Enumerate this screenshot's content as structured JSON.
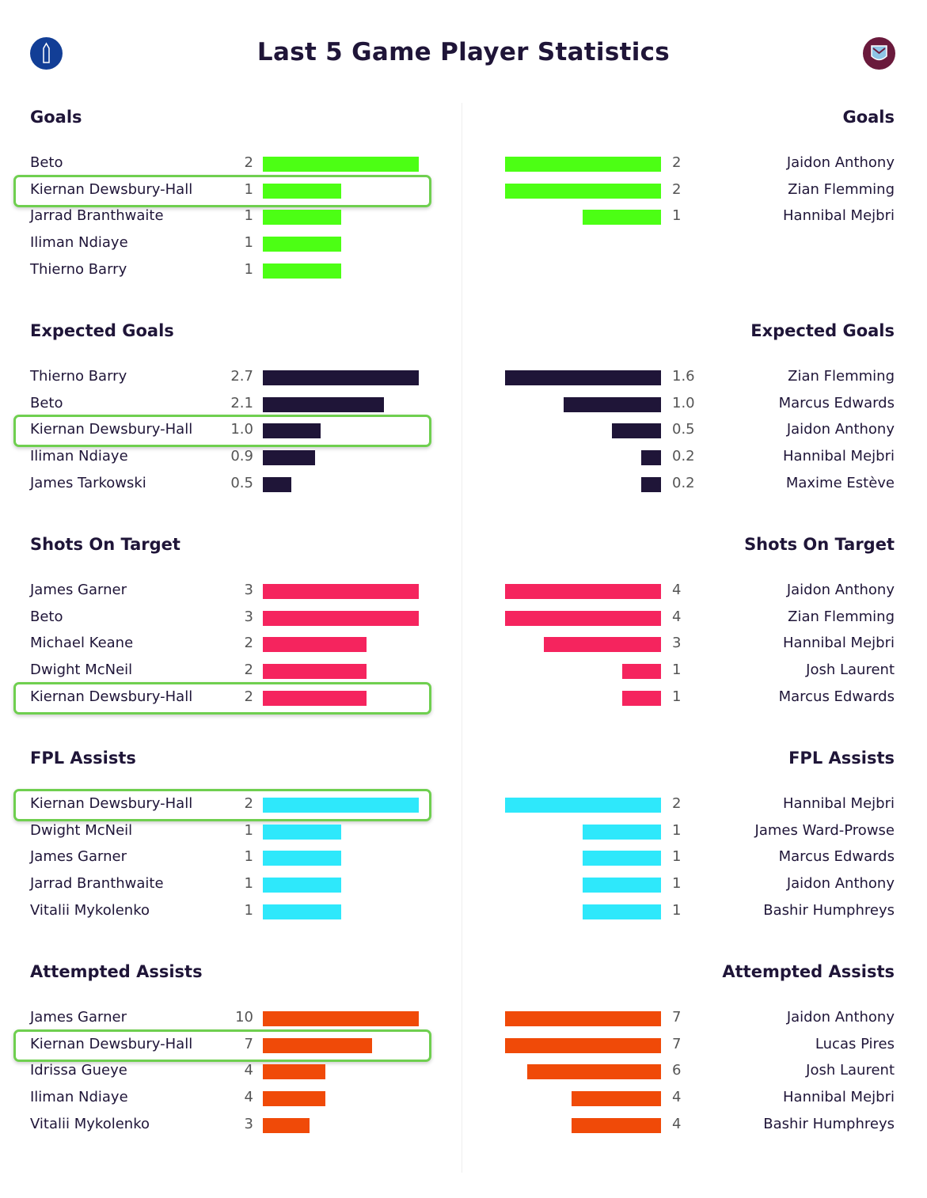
{
  "title": "Last 5 Game Player Statistics",
  "crests": {
    "left": "everton-crest",
    "right": "west-ham-crest"
  },
  "chart_data": {
    "type": "bar",
    "orientation": "horizontal",
    "highlighted_player": "Kiernan Dewsbury-Hall",
    "sections": [
      {
        "title": "Goals",
        "color": "#4cff14",
        "left": [
          {
            "name": "Beto",
            "value": "2"
          },
          {
            "name": "Kiernan Dewsbury-Hall",
            "value": "1"
          },
          {
            "name": "Jarrad Branthwaite",
            "value": "1"
          },
          {
            "name": "Iliman Ndiaye",
            "value": "1"
          },
          {
            "name": "Thierno Barry",
            "value": "1"
          }
        ],
        "right": [
          {
            "name": "Jaidon Anthony",
            "value": "2"
          },
          {
            "name": "Zian Flemming",
            "value": "2"
          },
          {
            "name": "Hannibal Mejbri",
            "value": "1"
          }
        ]
      },
      {
        "title": "Expected Goals",
        "color": "#1f1538",
        "left": [
          {
            "name": "Thierno Barry",
            "value": "2.7"
          },
          {
            "name": "Beto",
            "value": "2.1"
          },
          {
            "name": "Kiernan Dewsbury-Hall",
            "value": "1.0"
          },
          {
            "name": "Iliman Ndiaye",
            "value": "0.9"
          },
          {
            "name": "James Tarkowski",
            "value": "0.5"
          }
        ],
        "right": [
          {
            "name": "Zian Flemming",
            "value": "1.6"
          },
          {
            "name": "Marcus Edwards",
            "value": "1.0"
          },
          {
            "name": "Jaidon Anthony",
            "value": "0.5"
          },
          {
            "name": "Hannibal Mejbri",
            "value": "0.2"
          },
          {
            "name": "Maxime Estève",
            "value": "0.2"
          }
        ]
      },
      {
        "title": "Shots On Target",
        "color": "#f5245e",
        "left": [
          {
            "name": "James Garner",
            "value": "3"
          },
          {
            "name": "Beto",
            "value": "3"
          },
          {
            "name": "Michael Keane",
            "value": "2"
          },
          {
            "name": "Dwight McNeil",
            "value": "2"
          },
          {
            "name": "Kiernan Dewsbury-Hall",
            "value": "2"
          }
        ],
        "right": [
          {
            "name": "Jaidon Anthony",
            "value": "4"
          },
          {
            "name": "Zian Flemming",
            "value": "4"
          },
          {
            "name": "Hannibal Mejbri",
            "value": "3"
          },
          {
            "name": "Josh Laurent",
            "value": "1"
          },
          {
            "name": "Marcus Edwards",
            "value": "1"
          }
        ]
      },
      {
        "title": "FPL Assists",
        "color": "#2ee8fb",
        "left": [
          {
            "name": "Kiernan Dewsbury-Hall",
            "value": "2"
          },
          {
            "name": "Dwight McNeil",
            "value": "1"
          },
          {
            "name": "James Garner",
            "value": "1"
          },
          {
            "name": "Jarrad Branthwaite",
            "value": "1"
          },
          {
            "name": "Vitalii Mykolenko",
            "value": "1"
          }
        ],
        "right": [
          {
            "name": "Hannibal Mejbri",
            "value": "2"
          },
          {
            "name": "James Ward-Prowse",
            "value": "1"
          },
          {
            "name": "Marcus Edwards",
            "value": "1"
          },
          {
            "name": "Jaidon Anthony",
            "value": "1"
          },
          {
            "name": "Bashir Humphreys",
            "value": "1"
          }
        ]
      },
      {
        "title": "Attempted Assists",
        "color": "#f04a08",
        "left": [
          {
            "name": "James Garner",
            "value": "10"
          },
          {
            "name": "Kiernan Dewsbury-Hall",
            "value": "7"
          },
          {
            "name": "Idrissa Gueye",
            "value": "4"
          },
          {
            "name": "Iliman Ndiaye",
            "value": "4"
          },
          {
            "name": "Vitalii Mykolenko",
            "value": "3"
          }
        ],
        "right": [
          {
            "name": "Jaidon Anthony",
            "value": "7"
          },
          {
            "name": "Lucas Pires",
            "value": "7"
          },
          {
            "name": "Josh Laurent",
            "value": "6"
          },
          {
            "name": "Hannibal Mejbri",
            "value": "4"
          },
          {
            "name": "Bashir Humphreys",
            "value": "4"
          }
        ]
      }
    ]
  }
}
